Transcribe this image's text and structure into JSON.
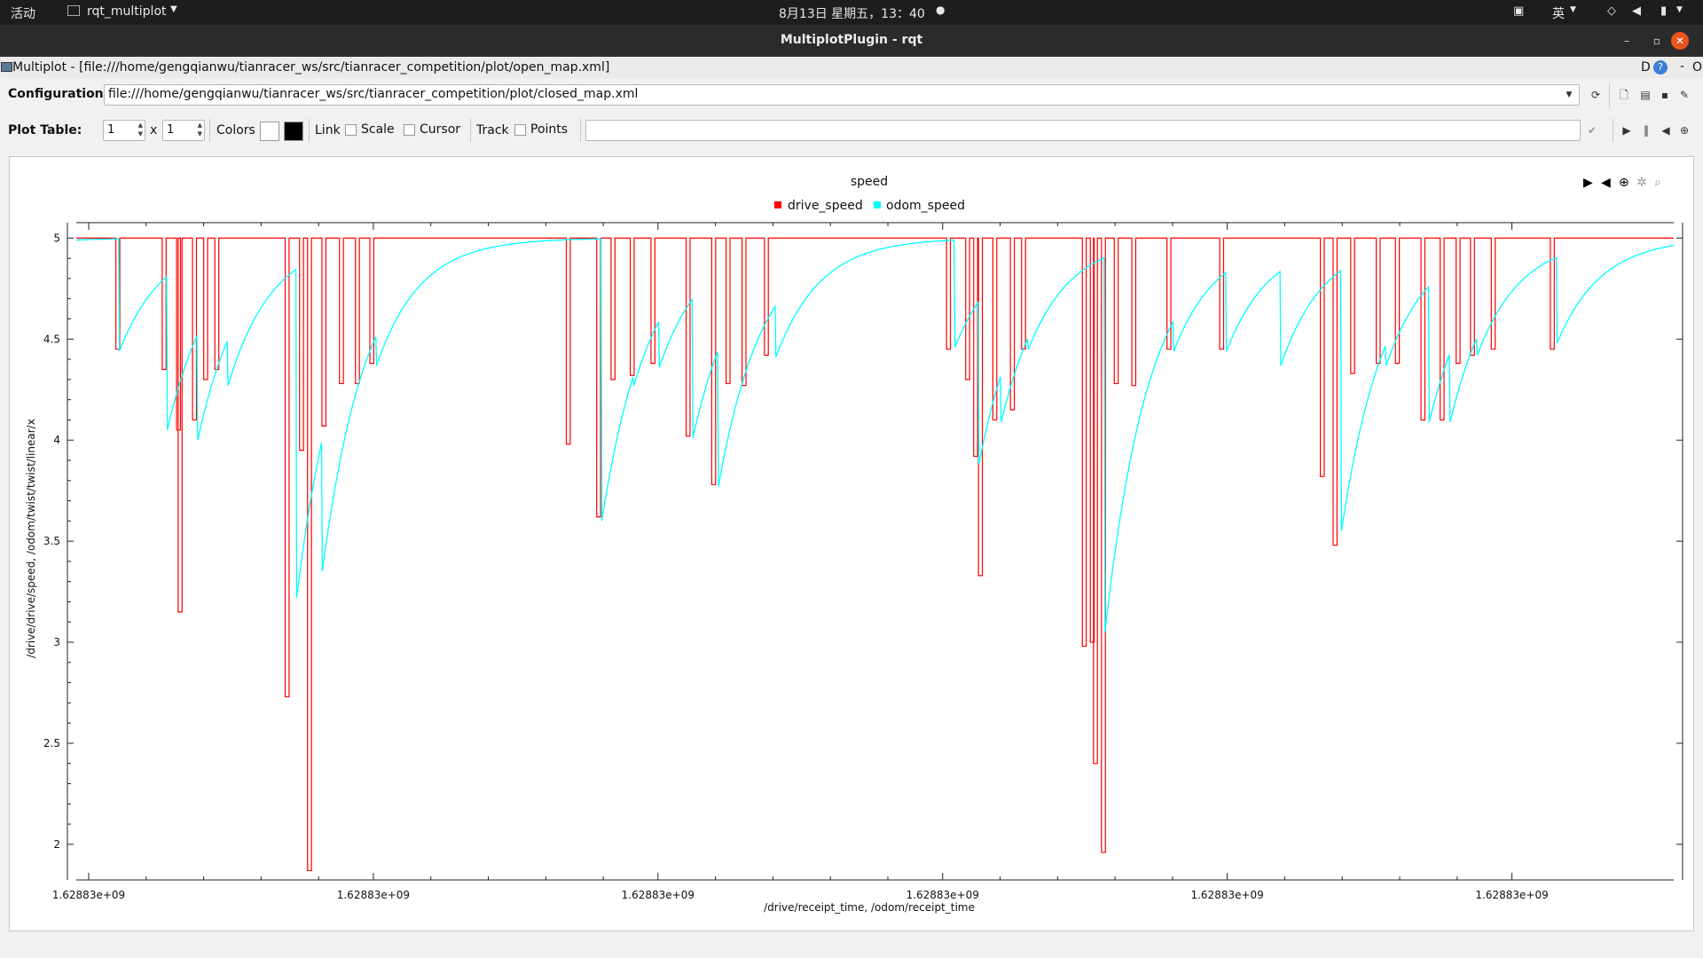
{
  "topbar": {
    "activities": "活动",
    "app_menu": "rqt_multiplot",
    "clock": "8月13日 星期五，13：40",
    "input_method": "英"
  },
  "window": {
    "title": "MultiplotPlugin - rqt",
    "min": "–",
    "max": "▫",
    "close": "✕"
  },
  "plugin": {
    "title": "Multiplot - [file:///home/gengqianwu/tianracer_ws/src/tianracer_competition/plot/open_map.xml]",
    "right_text": "D",
    "right_help": "?",
    "right_dash": "-",
    "right_o": "O"
  },
  "config": {
    "label": "Configuration:",
    "value": "file:///home/gengqianwu/tianracer_ws/src/tianracer_competition/plot/closed_map.xml"
  },
  "plot_table": {
    "label": "Plot Table:",
    "rows": "1",
    "x": "x",
    "cols": "1",
    "colors": "Colors",
    "link": "Link",
    "scale": "Scale",
    "cursor": "Cursor",
    "track": "Track",
    "points": "Points",
    "bg_color": "#ffffff",
    "fg_color": "#000000"
  },
  "chart_data": {
    "type": "line",
    "title": "speed",
    "xlabel": "/drive/receipt_time, /odom/receipt_time",
    "ylabel": "/drive/drive/speed, /odom/twist/twist/linear/x",
    "ylim": [
      1.85,
      5.05
    ],
    "yticks": [
      2,
      2.5,
      3,
      3.5,
      4,
      4.5,
      5
    ],
    "ytick_labels": [
      "2",
      "2.5",
      "3",
      "3.5",
      "4",
      "4.5",
      "5"
    ],
    "xtick_labels": [
      "1.62883e+09",
      "1.62883e+09",
      "1.62883e+09",
      "1.62883e+09",
      "1.62883e+09",
      "1.62883e+09"
    ],
    "xlim": [
      0,
      100
    ],
    "xtick_positions": [
      0,
      18.1,
      36.2,
      54.3,
      72.4,
      90.5
    ],
    "legend_position": "top-center",
    "series": [
      {
        "name": "drive_speed",
        "color": "#ff0000",
        "base": 5.0,
        "dips": [
          [
            2.6,
            4.45
          ],
          [
            5.5,
            4.35
          ],
          [
            6.4,
            4.05
          ],
          [
            6.5,
            3.15
          ],
          [
            7.4,
            4.1
          ],
          [
            8.1,
            4.3
          ],
          [
            8.8,
            4.35
          ],
          [
            13.2,
            2.73
          ],
          [
            14.1,
            3.95
          ],
          [
            14.6,
            1.87
          ],
          [
            15.5,
            4.07
          ],
          [
            16.6,
            4.28
          ],
          [
            17.6,
            4.28
          ],
          [
            18.5,
            4.38
          ],
          [
            30.8,
            3.98
          ],
          [
            32.7,
            3.62
          ],
          [
            33.6,
            4.3
          ],
          [
            34.8,
            4.32
          ],
          [
            36.1,
            4.38
          ],
          [
            38.3,
            4.02
          ],
          [
            39.9,
            3.78
          ],
          [
            40.8,
            4.28
          ],
          [
            41.8,
            4.27
          ],
          [
            43.2,
            4.42
          ],
          [
            54.6,
            4.45
          ],
          [
            55.8,
            4.3
          ],
          [
            56.3,
            3.92
          ],
          [
            56.6,
            3.33
          ],
          [
            57.5,
            4.1
          ],
          [
            58.6,
            4.15
          ],
          [
            59.3,
            4.45
          ],
          [
            63.1,
            2.98
          ],
          [
            63.6,
            3.0
          ],
          [
            63.8,
            2.4
          ],
          [
            64.3,
            1.96
          ],
          [
            65.1,
            4.28
          ],
          [
            66.2,
            4.27
          ],
          [
            68.4,
            4.45
          ],
          [
            71.7,
            4.45
          ],
          [
            78.0,
            3.82
          ],
          [
            78.8,
            3.48
          ],
          [
            79.9,
            4.33
          ],
          [
            81.5,
            4.38
          ],
          [
            82.7,
            4.38
          ],
          [
            84.3,
            4.1
          ],
          [
            85.5,
            4.1
          ],
          [
            86.5,
            4.38
          ],
          [
            87.4,
            4.42
          ],
          [
            88.7,
            4.45
          ],
          [
            92.4,
            4.45
          ]
        ]
      },
      {
        "name": "odom_speed",
        "color": "#00ffff",
        "start": 4.99,
        "drops": [
          [
            2.7,
            4.44
          ],
          [
            5.7,
            4.05
          ],
          [
            7.6,
            4.0
          ],
          [
            9.5,
            4.27
          ],
          [
            13.8,
            3.22
          ],
          [
            15.4,
            3.35
          ],
          [
            18.8,
            4.37
          ],
          [
            32.9,
            3.6
          ],
          [
            34.9,
            4.27
          ],
          [
            36.5,
            4.36
          ],
          [
            38.6,
            4.01
          ],
          [
            40.2,
            3.77
          ],
          [
            41.5,
            4.26
          ],
          [
            43.8,
            4.41
          ],
          [
            55.0,
            4.46
          ],
          [
            56.5,
            3.88
          ],
          [
            57.9,
            4.09
          ],
          [
            59.6,
            4.45
          ],
          [
            64.4,
            3.05
          ],
          [
            68.7,
            4.44
          ],
          [
            72.0,
            4.44
          ],
          [
            75.4,
            4.37
          ],
          [
            79.2,
            3.55
          ],
          [
            80.2,
            4.32
          ],
          [
            82.0,
            4.37
          ],
          [
            84.7,
            4.09
          ],
          [
            86.0,
            4.09
          ],
          [
            87.7,
            4.42
          ],
          [
            92.7,
            4.48
          ]
        ]
      }
    ]
  }
}
